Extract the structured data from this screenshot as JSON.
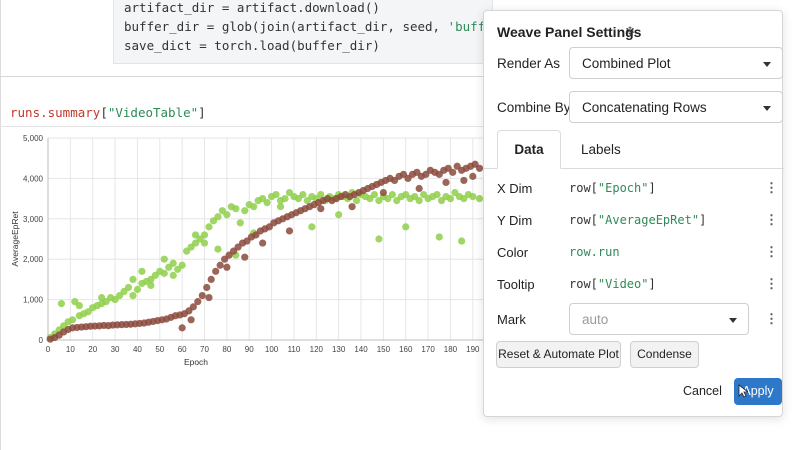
{
  "code": {
    "lines": [
      {
        "pre": "artifact_dir = artifact.download()",
        "str": "",
        "post": ""
      },
      {
        "pre": "buffer_dir = glob(join(artifact_dir, seed, ",
        "str": "'buffers/*'",
        "post": ")"
      },
      {
        "pre": "save_dict = torch.load(buffer_dir)",
        "str": "",
        "post": ""
      }
    ]
  },
  "query": {
    "prefix": "runs.summary",
    "open": "[",
    "key": "\"VideoTable\"",
    "close": "]"
  },
  "panel": {
    "title": "Weave Panel Settings",
    "title_icon": "snowflake-icon",
    "render_as_label": "Render As",
    "render_as_value": "Combined Plot",
    "combine_by_label": "Combine By",
    "combine_by_value": "Concatenating Rows",
    "tabs": [
      "Data",
      "Labels"
    ],
    "dims": [
      {
        "label": "X Dim",
        "fn": "row[",
        "arg": "\"Epoch\"",
        "end": "]"
      },
      {
        "label": "Y Dim",
        "fn": "row[",
        "arg": "\"AverageEpRet\"",
        "end": "]"
      },
      {
        "label": "Color",
        "fn": "row.run",
        "arg": "",
        "end": ""
      },
      {
        "label": "Tooltip",
        "fn": "row[",
        "arg": "\"Video\"",
        "end": "]"
      }
    ],
    "mark_label": "Mark",
    "mark_placeholder": "auto",
    "reset_button": "Reset & Automate Plot",
    "condense_button": "Condense",
    "cancel_button": "Cancel",
    "apply_button": "Apply"
  },
  "colors": {
    "series_green": "#8fcf4a",
    "series_brown": "#8b4a3c",
    "apply_blue": "#2d78c8"
  },
  "chart_data": {
    "type": "scatter",
    "xlabel": "Epoch",
    "ylabel": "AverageEpRet",
    "xlim": [
      0,
      195
    ],
    "ylim": [
      0,
      5000
    ],
    "x_ticks": [
      0,
      10,
      20,
      30,
      40,
      50,
      60,
      70,
      80,
      90,
      100,
      110,
      120,
      130,
      140,
      150,
      160,
      170,
      180,
      190
    ],
    "y_ticks": [
      0,
      1000,
      2000,
      3000,
      4000,
      5000
    ],
    "y_tick_labels": [
      "0",
      "1,000",
      "2,000",
      "3,000",
      "4,000",
      "5,000"
    ],
    "grid": true,
    "series": [
      {
        "color": "#8fcf4a",
        "points": [
          [
            1,
            60
          ],
          [
            3,
            150
          ],
          [
            5,
            250
          ],
          [
            7,
            350
          ],
          [
            9,
            450
          ],
          [
            11,
            500
          ],
          [
            12,
            950
          ],
          [
            14,
            600
          ],
          [
            16,
            650
          ],
          [
            18,
            700
          ],
          [
            20,
            800
          ],
          [
            22,
            850
          ],
          [
            24,
            900
          ],
          [
            26,
            950
          ],
          [
            28,
            1050
          ],
          [
            30,
            1000
          ],
          [
            32,
            1100
          ],
          [
            34,
            1200
          ],
          [
            36,
            1300
          ],
          [
            38,
            1100
          ],
          [
            40,
            1250
          ],
          [
            42,
            1400
          ],
          [
            44,
            1450
          ],
          [
            46,
            1500
          ],
          [
            48,
            1600
          ],
          [
            50,
            1700
          ],
          [
            52,
            1650
          ],
          [
            54,
            1800
          ],
          [
            56,
            1900
          ],
          [
            58,
            1750
          ],
          [
            60,
            1850
          ],
          [
            62,
            2200
          ],
          [
            64,
            2300
          ],
          [
            66,
            2400
          ],
          [
            68,
            2500
          ],
          [
            70,
            2600
          ],
          [
            72,
            2800
          ],
          [
            74,
            2950
          ],
          [
            76,
            3050
          ],
          [
            78,
            3200
          ],
          [
            80,
            3100
          ],
          [
            82,
            3300
          ],
          [
            84,
            3250
          ],
          [
            86,
            2900
          ],
          [
            88,
            3200
          ],
          [
            90,
            3350
          ],
          [
            92,
            3300
          ],
          [
            94,
            3450
          ],
          [
            96,
            3500
          ],
          [
            98,
            3400
          ],
          [
            100,
            3550
          ],
          [
            102,
            3600
          ],
          [
            104,
            3450
          ],
          [
            106,
            3500
          ],
          [
            108,
            3650
          ],
          [
            110,
            3550
          ],
          [
            112,
            3500
          ],
          [
            114,
            3600
          ],
          [
            116,
            3450
          ],
          [
            118,
            3550
          ],
          [
            120,
            3500
          ],
          [
            122,
            3600
          ],
          [
            124,
            3450
          ],
          [
            126,
            3550
          ],
          [
            128,
            3500
          ],
          [
            130,
            3600
          ],
          [
            132,
            3550
          ],
          [
            134,
            3500
          ],
          [
            136,
            3650
          ],
          [
            138,
            3450
          ],
          [
            140,
            3600
          ],
          [
            142,
            3550
          ],
          [
            144,
            3500
          ],
          [
            146,
            3600
          ],
          [
            148,
            3450
          ],
          [
            150,
            3550
          ],
          [
            152,
            3500
          ],
          [
            154,
            3600
          ],
          [
            156,
            3450
          ],
          [
            158,
            3550
          ],
          [
            160,
            3600
          ],
          [
            162,
            3500
          ],
          [
            164,
            3550
          ],
          [
            166,
            3450
          ],
          [
            168,
            3600
          ],
          [
            170,
            3500
          ],
          [
            172,
            3550
          ],
          [
            174,
            3600
          ],
          [
            176,
            3450
          ],
          [
            178,
            3550
          ],
          [
            180,
            3500
          ],
          [
            182,
            3650
          ],
          [
            184,
            3550
          ],
          [
            186,
            3500
          ],
          [
            188,
            3600
          ],
          [
            190,
            3550
          ],
          [
            193,
            3500
          ],
          [
            38,
            1500
          ],
          [
            46,
            1350
          ],
          [
            56,
            1600
          ],
          [
            66,
            2600
          ],
          [
            70,
            2400
          ],
          [
            76,
            2250
          ],
          [
            84,
            2100
          ],
          [
            92,
            2650
          ],
          [
            104,
            3300
          ],
          [
            118,
            2800
          ],
          [
            130,
            3100
          ],
          [
            148,
            2500
          ],
          [
            160,
            2800
          ],
          [
            175,
            2550
          ],
          [
            185,
            2450
          ],
          [
            6,
            900
          ],
          [
            14,
            850
          ],
          [
            24,
            1050
          ],
          [
            42,
            1700
          ],
          [
            52,
            2000
          ]
        ]
      },
      {
        "color": "#8b4a3c",
        "points": [
          [
            1,
            20
          ],
          [
            3,
            60
          ],
          [
            5,
            120
          ],
          [
            7,
            200
          ],
          [
            9,
            260
          ],
          [
            11,
            300
          ],
          [
            13,
            310
          ],
          [
            15,
            320
          ],
          [
            17,
            330
          ],
          [
            19,
            340
          ],
          [
            21,
            345
          ],
          [
            23,
            350
          ],
          [
            25,
            360
          ],
          [
            27,
            355
          ],
          [
            29,
            370
          ],
          [
            31,
            375
          ],
          [
            33,
            380
          ],
          [
            35,
            385
          ],
          [
            37,
            390
          ],
          [
            39,
            400
          ],
          [
            41,
            410
          ],
          [
            43,
            420
          ],
          [
            45,
            440
          ],
          [
            47,
            460
          ],
          [
            49,
            480
          ],
          [
            51,
            500
          ],
          [
            53,
            520
          ],
          [
            55,
            560
          ],
          [
            57,
            600
          ],
          [
            59,
            620
          ],
          [
            61,
            650
          ],
          [
            63,
            720
          ],
          [
            65,
            820
          ],
          [
            67,
            950
          ],
          [
            69,
            1100
          ],
          [
            71,
            1300
          ],
          [
            73,
            1500
          ],
          [
            75,
            1700
          ],
          [
            77,
            1850
          ],
          [
            79,
            2000
          ],
          [
            81,
            2100
          ],
          [
            83,
            2200
          ],
          [
            85,
            2300
          ],
          [
            87,
            2400
          ],
          [
            89,
            2450
          ],
          [
            91,
            2550
          ],
          [
            93,
            2600
          ],
          [
            95,
            2700
          ],
          [
            97,
            2750
          ],
          [
            99,
            2800
          ],
          [
            101,
            2900
          ],
          [
            103,
            2950
          ],
          [
            105,
            3000
          ],
          [
            107,
            3050
          ],
          [
            109,
            3100
          ],
          [
            111,
            3150
          ],
          [
            113,
            3200
          ],
          [
            115,
            3250
          ],
          [
            117,
            3300
          ],
          [
            119,
            3350
          ],
          [
            121,
            3400
          ],
          [
            123,
            3450
          ],
          [
            125,
            3500
          ],
          [
            127,
            3450
          ],
          [
            129,
            3500
          ],
          [
            131,
            3550
          ],
          [
            133,
            3600
          ],
          [
            135,
            3550
          ],
          [
            137,
            3600
          ],
          [
            139,
            3650
          ],
          [
            141,
            3700
          ],
          [
            143,
            3750
          ],
          [
            145,
            3800
          ],
          [
            147,
            3850
          ],
          [
            149,
            3900
          ],
          [
            151,
            3950
          ],
          [
            153,
            4000
          ],
          [
            155,
            3950
          ],
          [
            157,
            4050
          ],
          [
            159,
            4100
          ],
          [
            161,
            4000
          ],
          [
            163,
            4100
          ],
          [
            165,
            4150
          ],
          [
            167,
            4050
          ],
          [
            169,
            4100
          ],
          [
            171,
            4200
          ],
          [
            173,
            4150
          ],
          [
            175,
            4100
          ],
          [
            177,
            4200
          ],
          [
            179,
            4250
          ],
          [
            181,
            4150
          ],
          [
            183,
            4300
          ],
          [
            185,
            4200
          ],
          [
            187,
            4250
          ],
          [
            189,
            4300
          ],
          [
            191,
            4350
          ],
          [
            193,
            4250
          ],
          [
            72,
            1050
          ],
          [
            80,
            1800
          ],
          [
            88,
            2050
          ],
          [
            96,
            2400
          ],
          [
            108,
            2700
          ],
          [
            122,
            3250
          ],
          [
            136,
            3300
          ],
          [
            150,
            3650
          ],
          [
            166,
            3750
          ],
          [
            178,
            3900
          ],
          [
            186,
            3950
          ],
          [
            190,
            4050
          ],
          [
            60,
            300
          ],
          [
            64,
            500
          ]
        ]
      }
    ]
  }
}
